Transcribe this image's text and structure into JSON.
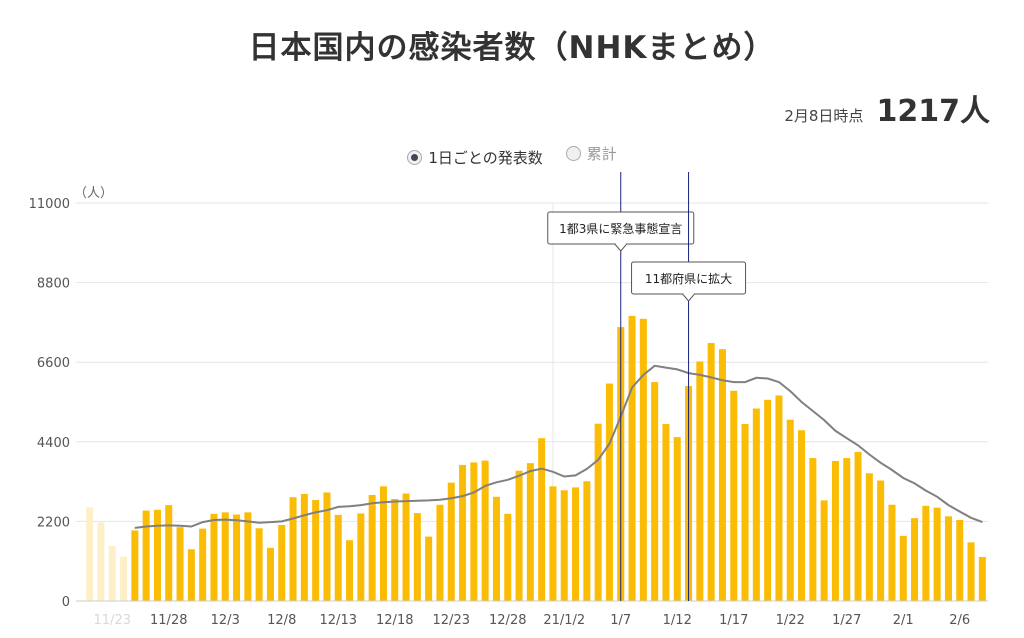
{
  "header": {
    "title": "日本国内の感染者数（NHKまとめ）",
    "as_of_label": "2月8日時点",
    "as_of_value": "1217人"
  },
  "toggle": {
    "options": [
      {
        "label": "1日ごとの発表数",
        "selected": true
      },
      {
        "label": "累計",
        "selected": false
      }
    ]
  },
  "colors": {
    "bar": "#fbbc05",
    "bar_faded": "#fdf0c8",
    "average_line": "#808080",
    "event_line": "#1a237e",
    "grid": "#e6e6e6"
  },
  "chart_data": {
    "type": "bar",
    "title": "",
    "ylabel": "（人）",
    "xlabel": "",
    "ylim": [
      0,
      11000
    ],
    "yticks": [
      0,
      2200,
      4400,
      6600,
      8800,
      11000
    ],
    "x": [
      "11/21",
      "11/22",
      "11/23",
      "11/24",
      "11/25",
      "11/26",
      "11/27",
      "11/28",
      "11/29",
      "11/30",
      "12/1",
      "12/2",
      "12/3",
      "12/4",
      "12/5",
      "12/6",
      "12/7",
      "12/8",
      "12/9",
      "12/10",
      "12/11",
      "12/12",
      "12/13",
      "12/14",
      "12/15",
      "12/16",
      "12/17",
      "12/18",
      "12/19",
      "12/20",
      "12/21",
      "12/22",
      "12/23",
      "12/24",
      "12/25",
      "12/26",
      "12/27",
      "12/28",
      "12/29",
      "12/30",
      "12/31",
      "1/1",
      "1/2",
      "1/3",
      "1/4",
      "1/5",
      "1/6",
      "1/7",
      "1/8",
      "1/9",
      "1/10",
      "1/11",
      "1/12",
      "1/13",
      "1/14",
      "1/15",
      "1/16",
      "1/17",
      "1/18",
      "1/19",
      "1/20",
      "1/21",
      "1/22",
      "1/23",
      "1/24",
      "1/25",
      "1/26",
      "1/27",
      "1/28",
      "1/29",
      "1/30",
      "1/31",
      "2/1",
      "2/2",
      "2/3",
      "2/4",
      "2/5",
      "2/6",
      "2/7",
      "2/8"
    ],
    "xticks": [
      {
        "index": 2,
        "label": "11/23",
        "faded": true
      },
      {
        "index": 7,
        "label": "11/28"
      },
      {
        "index": 12,
        "label": "12/3"
      },
      {
        "index": 17,
        "label": "12/8"
      },
      {
        "index": 22,
        "label": "12/13"
      },
      {
        "index": 27,
        "label": "12/18"
      },
      {
        "index": 32,
        "label": "12/23"
      },
      {
        "index": 37,
        "label": "12/28"
      },
      {
        "index": 42,
        "label": "21/1/2"
      },
      {
        "index": 47,
        "label": "1/7"
      },
      {
        "index": 52,
        "label": "1/12"
      },
      {
        "index": 57,
        "label": "1/17"
      },
      {
        "index": 62,
        "label": "1/22"
      },
      {
        "index": 67,
        "label": "1/27"
      },
      {
        "index": 72,
        "label": "2/1"
      },
      {
        "index": 77,
        "label": "2/6"
      }
    ],
    "faded_count": 4,
    "series": [
      {
        "type": "bar",
        "values": [
          2590,
          2170,
          1520,
          1230,
          1950,
          2500,
          2520,
          2650,
          2040,
          1430,
          2000,
          2410,
          2450,
          2390,
          2450,
          2010,
          1470,
          2100,
          2870,
          2960,
          2790,
          3000,
          2380,
          1680,
          2420,
          2930,
          3170,
          2820,
          2970,
          2430,
          1780,
          2660,
          3270,
          3760,
          3830,
          3880,
          2880,
          2410,
          3600,
          3810,
          4500,
          3170,
          3060,
          3140,
          3310,
          4900,
          6010,
          7570,
          7880,
          7800,
          6050,
          4890,
          4530,
          5940,
          6620,
          7130,
          6960,
          5810,
          4890,
          5320,
          5560,
          5680,
          5010,
          4720,
          3950,
          2780,
          3870,
          3950,
          4120,
          3530,
          3330,
          2660,
          1800,
          2290,
          2630,
          2580,
          2340,
          2240,
          1620,
          1217
        ]
      },
      {
        "type": "line",
        "values": [
          2000,
          2000,
          2000,
          2000,
          2020,
          2060,
          2080,
          2090,
          2080,
          2060,
          2180,
          2240,
          2250,
          2230,
          2200,
          2160,
          2180,
          2200,
          2280,
          2370,
          2450,
          2510,
          2600,
          2620,
          2650,
          2700,
          2730,
          2750,
          2760,
          2770,
          2780,
          2800,
          2840,
          2900,
          3000,
          3180,
          3280,
          3350,
          3460,
          3590,
          3660,
          3570,
          3440,
          3470,
          3650,
          3900,
          4350,
          5100,
          5900,
          6250,
          6500,
          6450,
          6400,
          6300,
          6250,
          6180,
          6100,
          6050,
          6050,
          6170,
          6150,
          6050,
          5800,
          5500,
          5250,
          5000,
          4700,
          4500,
          4300,
          4050,
          3820,
          3620,
          3400,
          3250,
          3050,
          2880,
          2650,
          2470,
          2300,
          2180
        ]
      }
    ],
    "annotations": [
      {
        "index": 47,
        "label": "1都3県に緊急事態宣言"
      },
      {
        "index": 53,
        "label": "11都府県に拡大"
      }
    ],
    "grid": true,
    "legend": "none"
  }
}
